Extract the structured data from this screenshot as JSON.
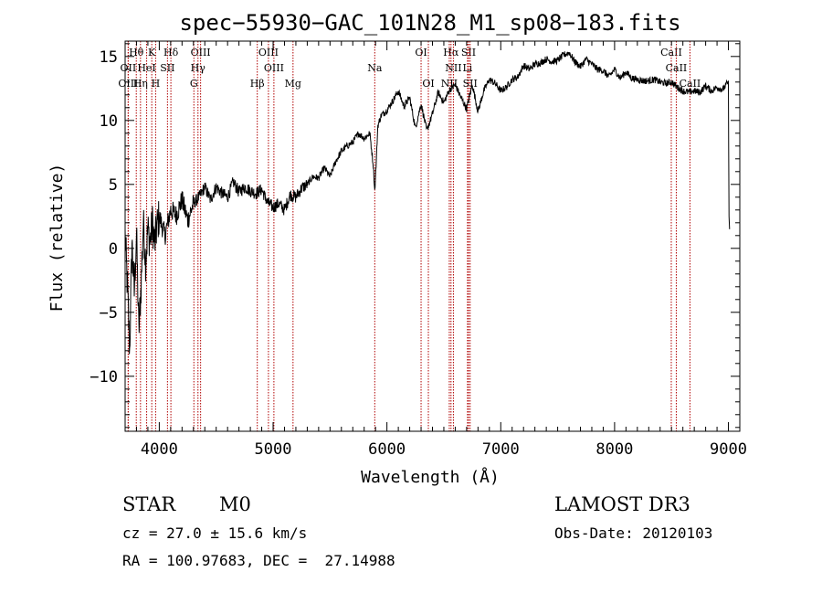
{
  "chart_data": {
    "type": "line",
    "title": "spec−55930−GAC_101N28_M1_sp08−183.fits",
    "xlabel": "Wavelength (Å)",
    "ylabel": "Flux (relative)",
    "xlim": [
      3700,
      9100
    ],
    "ylim": [
      -14.3,
      16.2
    ],
    "x_ticks": [
      4000,
      5000,
      6000,
      7000,
      8000,
      9000
    ],
    "y_ticks": [
      -10,
      -5,
      0,
      5,
      10,
      15
    ],
    "y_tick_labels": [
      "−10",
      "−5",
      "0",
      "5",
      "10",
      "15"
    ],
    "series": [
      {
        "name": "flux",
        "color": "#000000",
        "x": [
          3700,
          3720,
          3740,
          3760,
          3780,
          3800,
          3820,
          3840,
          3860,
          3880,
          3900,
          3920,
          3940,
          3960,
          3980,
          4000,
          4050,
          4100,
          4150,
          4200,
          4250,
          4300,
          4350,
          4400,
          4450,
          4500,
          4550,
          4600,
          4650,
          4700,
          4750,
          4800,
          4850,
          4900,
          4950,
          5000,
          5050,
          5100,
          5150,
          5200,
          5250,
          5300,
          5350,
          5400,
          5450,
          5500,
          5550,
          5600,
          5650,
          5700,
          5750,
          5800,
          5850,
          5880,
          5893,
          5905,
          5920,
          5950,
          6000,
          6050,
          6100,
          6150,
          6200,
          6250,
          6300,
          6350,
          6400,
          6450,
          6500,
          6550,
          6600,
          6650,
          6700,
          6750,
          6800,
          6850,
          6900,
          6950,
          7000,
          7050,
          7100,
          7150,
          7200,
          7250,
          7300,
          7350,
          7400,
          7450,
          7500,
          7550,
          7600,
          7650,
          7700,
          7750,
          7800,
          7850,
          7900,
          7950,
          8000,
          8050,
          8100,
          8150,
          8200,
          8250,
          8300,
          8350,
          8400,
          8450,
          8500,
          8550,
          8600,
          8650,
          8700,
          8750,
          8800,
          8850,
          8900,
          8950,
          8990,
          9000,
          9005,
          9010
        ],
        "y": [
          1.0,
          -3.0,
          -8.0,
          0.5,
          -3.5,
          1.2,
          -6.5,
          -3.0,
          2.0,
          -1.0,
          1.5,
          0.5,
          2.0,
          0.3,
          1.8,
          2.5,
          1.0,
          3.0,
          2.6,
          3.8,
          2.2,
          3.5,
          4.0,
          4.8,
          3.8,
          4.8,
          4.3,
          4.0,
          5.2,
          4.4,
          4.8,
          4.5,
          4.3,
          4.6,
          3.6,
          3.2,
          3.5,
          3.0,
          4.2,
          4.0,
          4.7,
          5.0,
          5.6,
          5.5,
          6.3,
          5.6,
          6.8,
          7.6,
          8.0,
          8.3,
          9.0,
          8.6,
          9.0,
          6.5,
          4.5,
          6.5,
          9.6,
          10.4,
          10.8,
          11.5,
          12.3,
          11.1,
          11.8,
          9.4,
          11.3,
          9.2,
          10.5,
          12.2,
          11.4,
          12.4,
          12.8,
          11.8,
          10.9,
          12.8,
          10.7,
          12.3,
          13.2,
          12.9,
          12.3,
          12.6,
          13.2,
          13.4,
          14.3,
          14.0,
          14.4,
          14.5,
          14.8,
          14.6,
          14.7,
          15.1,
          15.3,
          14.6,
          14.2,
          14.8,
          14.4,
          14.0,
          13.9,
          13.4,
          14.0,
          13.3,
          13.8,
          13.3,
          13.2,
          13.1,
          13.1,
          13.2,
          13.0,
          12.9,
          13.0,
          12.6,
          12.3,
          12.2,
          12.3,
          12.2,
          12.7,
          12.3,
          12.6,
          12.4,
          12.9,
          13.1,
          2.5,
          1.5
        ]
      }
    ],
    "lines": [
      {
        "name": "Hθ",
        "wavelength": 3798,
        "row": 1
      },
      {
        "name": "K",
        "wavelength": 3934,
        "row": 1
      },
      {
        "name": "Hδ",
        "wavelength": 4102,
        "row": 1
      },
      {
        "name": "OIII",
        "wavelength": 4363,
        "row": 1
      },
      {
        "name": "OIII",
        "wavelength": 4959,
        "row": 1
      },
      {
        "name": "OI",
        "wavelength": 6300,
        "row": 1
      },
      {
        "name": "Hα",
        "wavelength": 6563,
        "row": 1
      },
      {
        "name": "SII",
        "wavelength": 6717,
        "row": 1
      },
      {
        "name": "CaII",
        "wavelength": 8498,
        "row": 1
      },
      {
        "name": "OII",
        "wavelength": 3727,
        "row": 2
      },
      {
        "name": "HeI",
        "wavelength": 3889,
        "row": 2
      },
      {
        "name": "SII",
        "wavelength": 4072,
        "row": 2
      },
      {
        "name": "Hγ",
        "wavelength": 4340,
        "row": 2
      },
      {
        "name": "OIII",
        "wavelength": 5007,
        "row": 2
      },
      {
        "name": "Na",
        "wavelength": 5893,
        "row": 2
      },
      {
        "name": "NII",
        "wavelength": 6584,
        "row": 2
      },
      {
        "name": "Li",
        "wavelength": 6708,
        "row": 2
      },
      {
        "name": "CaII",
        "wavelength": 8542,
        "row": 2
      },
      {
        "name": "OIII",
        "wavelength": 3727,
        "row": 3
      },
      {
        "name": "Hη",
        "wavelength": 3835,
        "row": 3
      },
      {
        "name": "H",
        "wavelength": 3968,
        "row": 3
      },
      {
        "name": "G",
        "wavelength": 4304,
        "row": 3
      },
      {
        "name": "Hβ",
        "wavelength": 4861,
        "row": 3
      },
      {
        "name": "Mg",
        "wavelength": 5175,
        "row": 3
      },
      {
        "name": "OI",
        "wavelength": 6364,
        "row": 3
      },
      {
        "name": "NII",
        "wavelength": 6548,
        "row": 3
      },
      {
        "name": "SII",
        "wavelength": 6731,
        "row": 3
      },
      {
        "name": "CaII",
        "wavelength": 8662,
        "row": 3
      }
    ],
    "line_color": "#b00000"
  },
  "info": {
    "class_label": "STAR",
    "subclass": "M0",
    "survey": "LAMOST DR3",
    "cz": "cz = 27.0 ± 15.6 km/s",
    "obs_date": "Obs-Date: 20120103",
    "coords": "RA = 100.97683, DEC =  27.14988"
  }
}
